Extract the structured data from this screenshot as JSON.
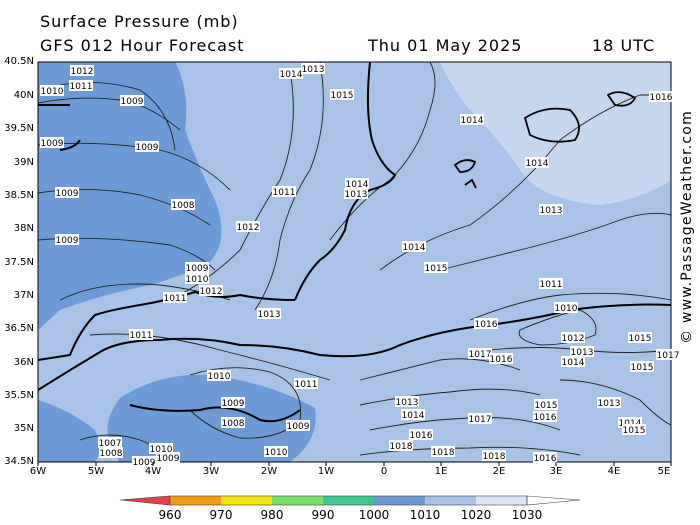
{
  "header": {
    "title": "Surface Pressure (mb)",
    "subtitle": "GFS 012 Hour Forecast",
    "date": "Thu 01 May 2025",
    "time": "18 UTC"
  },
  "watermark": "© www.PassageWeather.com",
  "axes": {
    "lat_labels": [
      "40.5N",
      "40N",
      "39.5N",
      "39N",
      "38.5N",
      "38N",
      "37.5N",
      "37N",
      "36.5N",
      "36N",
      "35.5N",
      "35N",
      "34.5N"
    ],
    "lon_labels": [
      "6W",
      "5W",
      "4W",
      "3W",
      "2W",
      "1W",
      "0",
      "1E",
      "2E",
      "3E",
      "4E",
      "5E"
    ]
  },
  "isobar_labels": [
    {
      "text": "1012"
    },
    {
      "text": "1011"
    },
    {
      "text": "1010"
    },
    {
      "text": "1009"
    },
    {
      "text": "1009"
    },
    {
      "text": "1009"
    },
    {
      "text": "1009"
    },
    {
      "text": "1009"
    },
    {
      "text": "1008"
    },
    {
      "text": "1009"
    },
    {
      "text": "1010"
    },
    {
      "text": "1011"
    },
    {
      "text": "1012"
    },
    {
      "text": "1011"
    },
    {
      "text": "1012"
    },
    {
      "text": "1013"
    },
    {
      "text": "1014"
    },
    {
      "text": "1013"
    },
    {
      "text": "1015"
    },
    {
      "text": "1014"
    },
    {
      "text": "1013"
    },
    {
      "text": "1014"
    },
    {
      "text": "1014"
    },
    {
      "text": "1015"
    },
    {
      "text": "1013"
    },
    {
      "text": "1011"
    },
    {
      "text": "1010"
    },
    {
      "text": "1014"
    },
    {
      "text": "1016"
    },
    {
      "text": "1016"
    },
    {
      "text": "1017"
    },
    {
      "text": "1012"
    },
    {
      "text": "1013"
    },
    {
      "text": "1014"
    },
    {
      "text": "1015"
    },
    {
      "text": "1011"
    },
    {
      "text": "1010"
    },
    {
      "text": "1011"
    },
    {
      "text": "1009"
    },
    {
      "text": "1008"
    },
    {
      "text": "1009"
    },
    {
      "text": "1013"
    },
    {
      "text": "1014"
    },
    {
      "text": "1016"
    },
    {
      "text": "1017"
    },
    {
      "text": "1015"
    },
    {
      "text": "1016"
    },
    {
      "text": "1013"
    },
    {
      "text": "1014"
    },
    {
      "text": "1015"
    },
    {
      "text": "1007"
    },
    {
      "text": "1008"
    },
    {
      "text": "1009"
    },
    {
      "text": "1010"
    },
    {
      "text": "1009"
    },
    {
      "text": "1010"
    },
    {
      "text": "1018"
    },
    {
      "text": "1018"
    },
    {
      "text": "1018"
    },
    {
      "text": "1016"
    },
    {
      "text": "1015"
    },
    {
      "text": "1017"
    },
    {
      "text": "1016"
    }
  ],
  "colorbar": {
    "labels": [
      "960",
      "970",
      "980",
      "990",
      "1000",
      "1010",
      "1020",
      "1030"
    ],
    "colors": [
      "#e8404a",
      "#f39a18",
      "#f3e418",
      "#78e06a",
      "#3cc890",
      "#6e9ad6",
      "#a9c3e6",
      "#dbe6f5"
    ]
  },
  "colors": {
    "low_pressure": "#6e9ad6",
    "mid_pressure": "#a9c3e6",
    "high_pressure": "#c6d6ee",
    "coastline": "#000000"
  }
}
